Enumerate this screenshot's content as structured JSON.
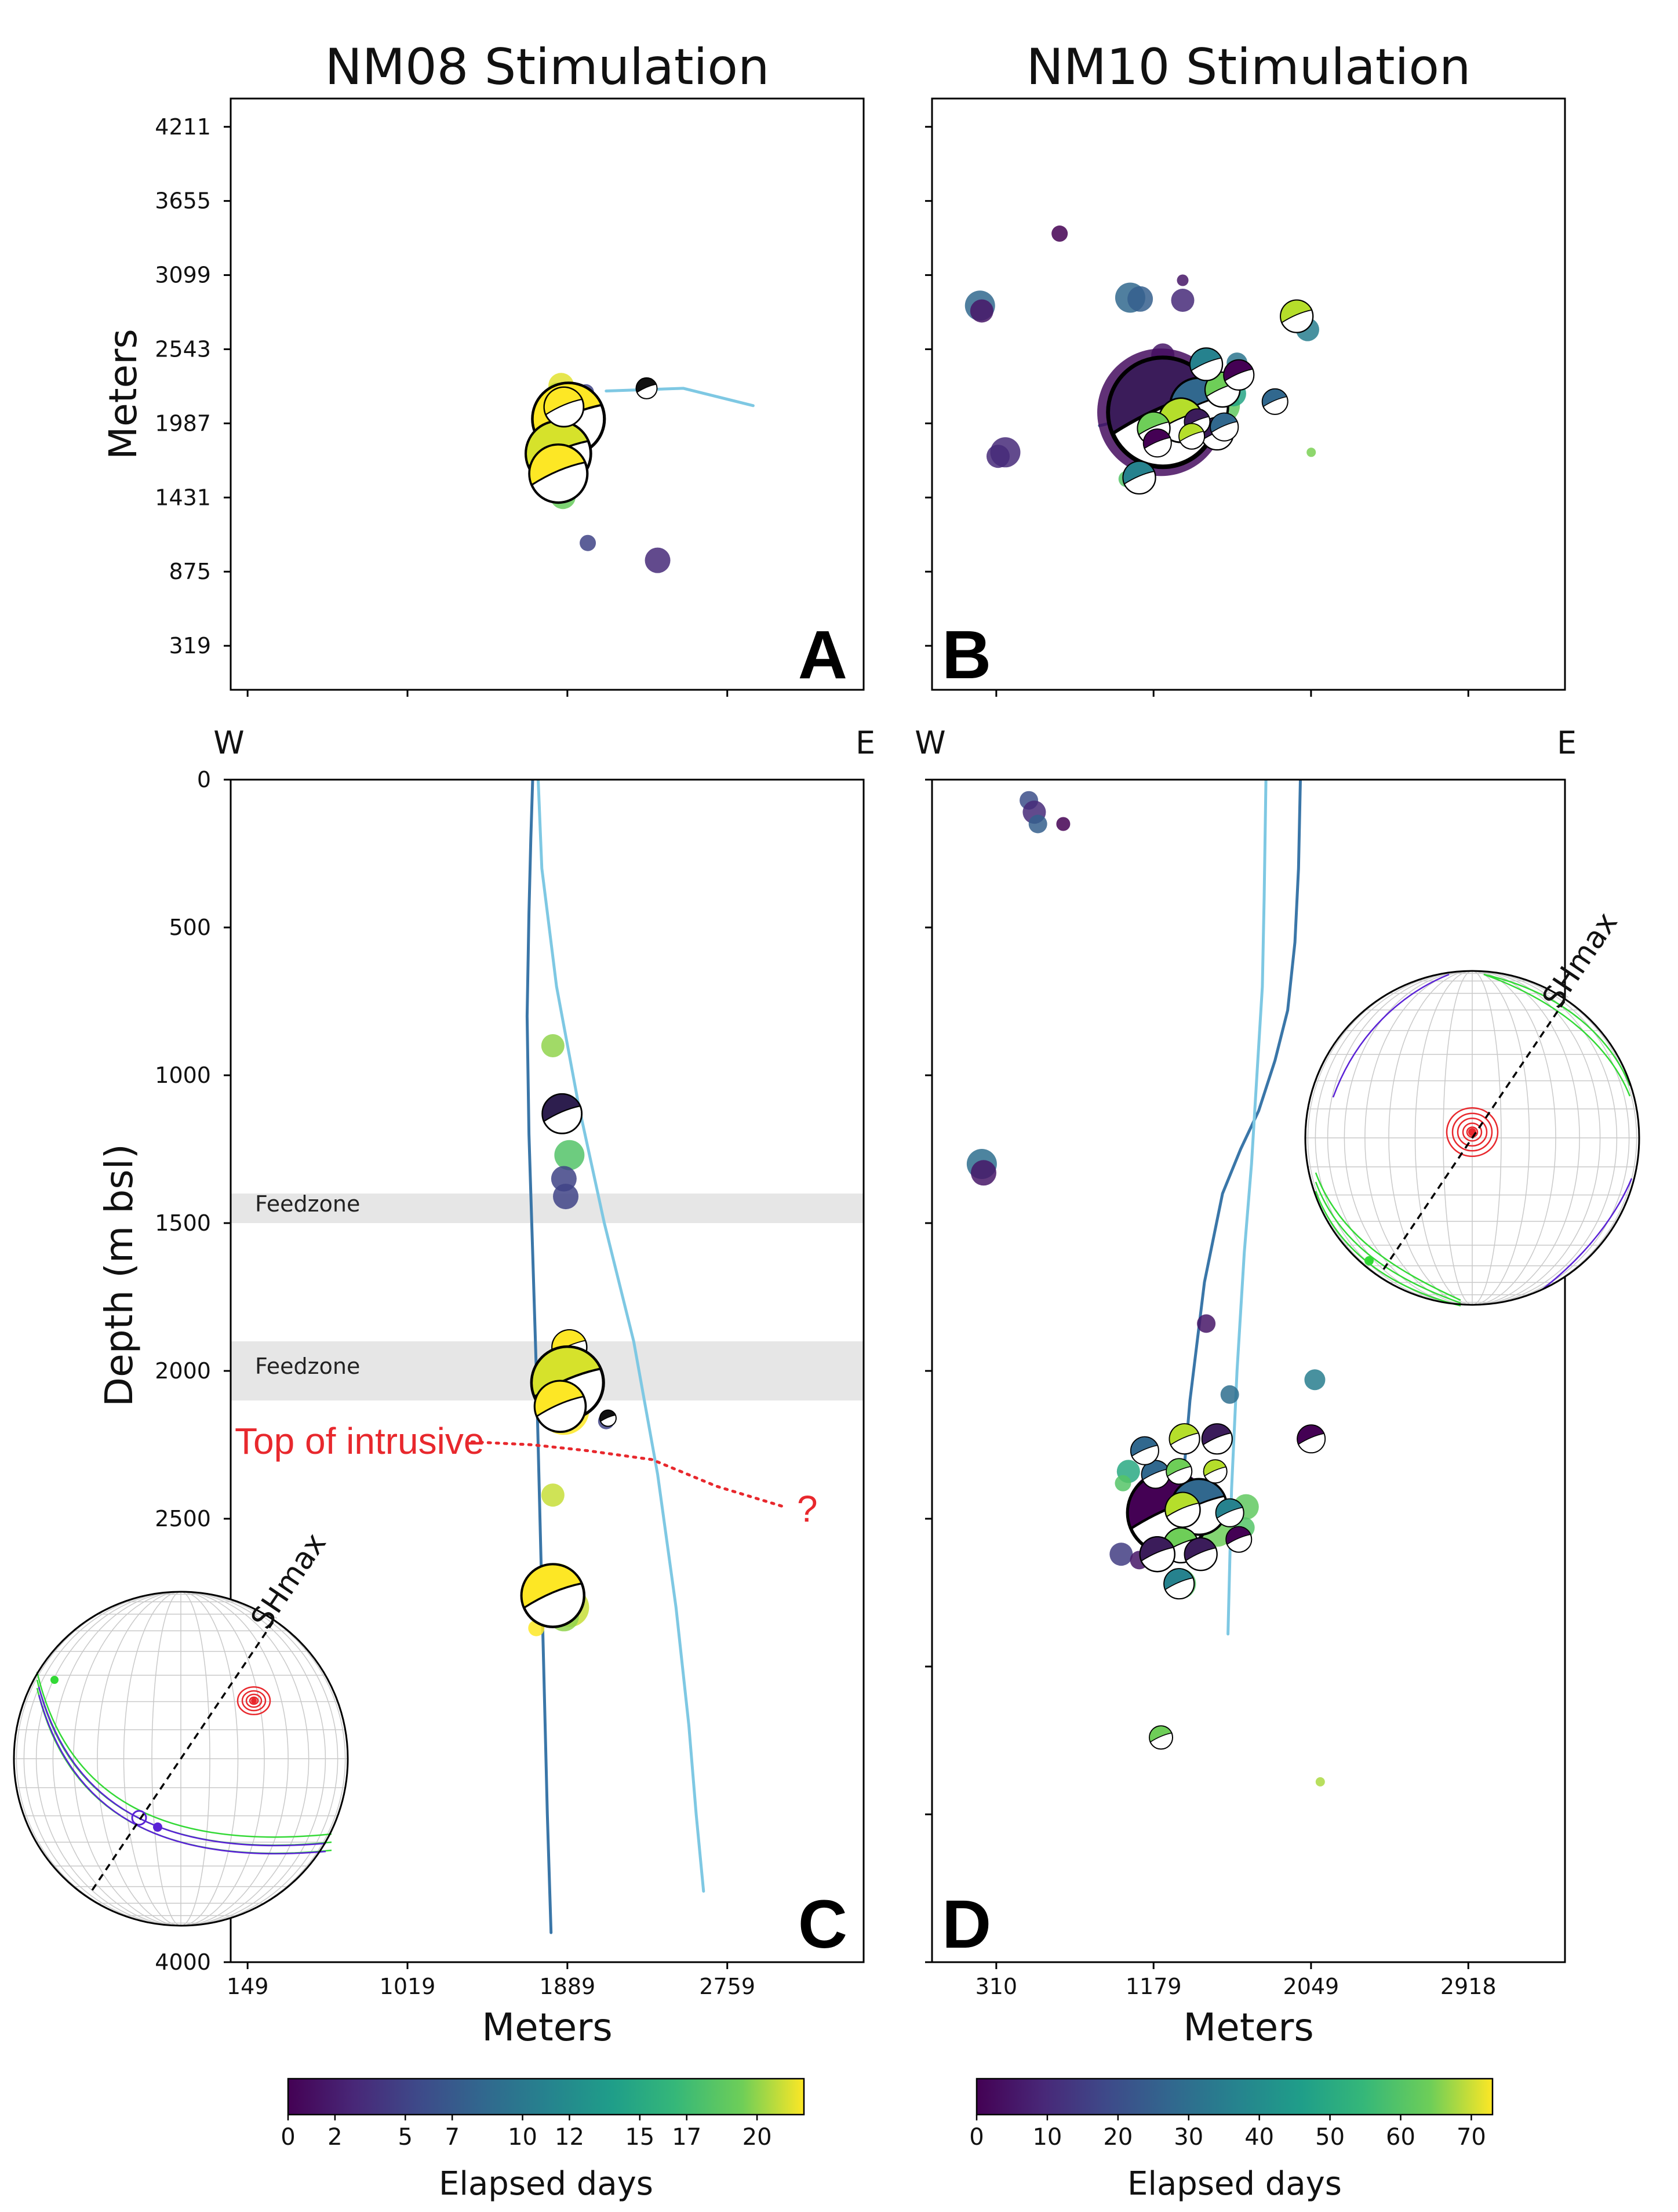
{
  "figure": {
    "titles": [
      "NM08 Stimulation",
      "NM10 Stimulation"
    ],
    "panel_letters": [
      "A",
      "B",
      "C",
      "D"
    ],
    "direction_labels": {
      "west": "W",
      "east": "E"
    },
    "annotations": {
      "feedzone_label": "Feedzone",
      "intrusive_label": "Top of intrusive",
      "question_mark": "?",
      "shmax_label": "SHmax"
    },
    "colors": {
      "well_dark": "#3a76a8",
      "well_light": "#7ec8e3",
      "feedzone_band": "#e6e6e6",
      "annotation_red": "#e8282d",
      "stereonet_red": "#e8282d",
      "stereonet_green": "#33d936",
      "stereonet_purple": "#5a22d6"
    }
  },
  "chart_data": [
    {
      "panel": "A",
      "type": "scatter",
      "title": "NM08 Stimulation",
      "ylabel": "Meters",
      "yticks": [
        "319",
        "875",
        "1431",
        "1987",
        "2543",
        "3099",
        "3655",
        "4211"
      ],
      "ylim": [
        -11,
        4423
      ],
      "colorbar": {
        "label": "Elapsed days",
        "ticks": [
          "0",
          "2",
          "5",
          "7",
          "10",
          "12",
          "15",
          "17",
          "20"
        ],
        "range": [
          0,
          22
        ]
      },
      "well_track_map": [
        [
          2100,
          2230
        ],
        [
          2520,
          2250
        ],
        [
          2900,
          2120
        ]
      ],
      "points": [
        {
          "x": 1855,
          "y": 2270,
          "r": 22,
          "day": 21.5
        },
        {
          "x": 1835,
          "y": 2220,
          "r": 14,
          "day": 0
        },
        {
          "x": 1880,
          "y": 2050,
          "r": 48,
          "day": 17.5
        },
        {
          "x": 1850,
          "y": 1990,
          "r": 40,
          "day": 21
        },
        {
          "x": 1870,
          "y": 1960,
          "r": 46,
          "day": 8
        },
        {
          "x": 1840,
          "y": 1760,
          "r": 40,
          "day": 22
        },
        {
          "x": 1840,
          "y": 1610,
          "r": 36,
          "day": 21
        },
        {
          "x": 1865,
          "y": 1440,
          "r": 22,
          "day": 19
        },
        {
          "x": 2320,
          "y": 2250,
          "r": 12,
          "day": 0
        },
        {
          "x": 1990,
          "y": 2220,
          "r": 14,
          "day": 5
        },
        {
          "x": 1830,
          "y": 2225,
          "r": 16,
          "day": 21
        },
        {
          "x": 2000,
          "y": 1090,
          "r": 14,
          "day": 5
        },
        {
          "x": 2380,
          "y": 960,
          "r": 22,
          "day": 3
        }
      ],
      "mechanisms": [
        {
          "x": 1895,
          "y": 2020,
          "r": 62
        },
        {
          "x": 1840,
          "y": 1760,
          "r": 56
        },
        {
          "x": 1840,
          "y": 1610,
          "r": 50
        },
        {
          "x": 1870,
          "y": 2110,
          "r": 34
        },
        {
          "x": 2320,
          "y": 2250,
          "r": 18
        }
      ]
    },
    {
      "panel": "B",
      "type": "scatter",
      "title": "NM10 Stimulation",
      "colorbar": {
        "label": "Elapsed days",
        "ticks": [
          "0",
          "10",
          "20",
          "30",
          "40",
          "50",
          "60",
          "70"
        ],
        "range": [
          0,
          73
        ]
      },
      "well_track_map": [
        [
          880,
          1970
        ],
        [
          1180,
          2060
        ],
        [
          1500,
          2150
        ]
      ],
      "points": [
        {
          "x": 220,
          "y": 2870,
          "r": 26,
          "day": 28
        },
        {
          "x": 230,
          "y": 2830,
          "r": 20,
          "day": 5
        },
        {
          "x": 660,
          "y": 3410,
          "r": 14,
          "day": 0
        },
        {
          "x": 1050,
          "y": 2930,
          "r": 26,
          "day": 28
        },
        {
          "x": 1105,
          "y": 2920,
          "r": 22,
          "day": 25
        },
        {
          "x": 1340,
          "y": 3060,
          "r": 10,
          "day": 5
        },
        {
          "x": 1340,
          "y": 2910,
          "r": 20,
          "day": 10
        },
        {
          "x": 360,
          "y": 1770,
          "r": 26,
          "day": 10
        },
        {
          "x": 320,
          "y": 1740,
          "r": 20,
          "day": 10
        },
        {
          "x": 1230,
          "y": 2500,
          "r": 20,
          "day": 5
        },
        {
          "x": 1640,
          "y": 2440,
          "r": 18,
          "day": 32
        },
        {
          "x": 2030,
          "y": 2690,
          "r": 20,
          "day": 35
        },
        {
          "x": 2050,
          "y": 1770,
          "r": 8,
          "day": 65
        },
        {
          "x": 1030,
          "y": 1570,
          "r": 14,
          "day": 60
        },
        {
          "x": 1100,
          "y": 1570,
          "r": 14,
          "day": 55
        },
        {
          "x": 1430,
          "y": 2110,
          "r": 40,
          "day": 28
        },
        {
          "x": 1560,
          "y": 2120,
          "r": 30,
          "day": 62
        },
        {
          "x": 1620,
          "y": 2210,
          "r": 22,
          "day": 48
        },
        {
          "x": 1220,
          "y": 2070,
          "r": 110,
          "day": 3
        },
        {
          "x": 1460,
          "y": 2010,
          "r": 38,
          "day": 68
        },
        {
          "x": 1520,
          "y": 1970,
          "r": 22,
          "day": 45
        }
      ],
      "mechanisms": [
        {
          "x": 1230,
          "y": 2070,
          "r": 94
        },
        {
          "x": 1430,
          "y": 2110,
          "r": 50
        },
        {
          "x": 1330,
          "y": 2010,
          "r": 38
        },
        {
          "x": 1560,
          "y": 2240,
          "r": 30
        },
        {
          "x": 1650,
          "y": 2350,
          "r": 26
        },
        {
          "x": 1470,
          "y": 2430,
          "r": 28
        },
        {
          "x": 1530,
          "y": 1910,
          "r": 28
        },
        {
          "x": 1850,
          "y": 2150,
          "r": 22
        },
        {
          "x": 1970,
          "y": 2790,
          "r": 28
        },
        {
          "x": 1180,
          "y": 1950,
          "r": 28
        },
        {
          "x": 1200,
          "y": 1840,
          "r": 24
        },
        {
          "x": 1100,
          "y": 1580,
          "r": 28
        },
        {
          "x": 1420,
          "y": 2000,
          "r": 22
        },
        {
          "x": 1570,
          "y": 1960,
          "r": 24
        },
        {
          "x": 1390,
          "y": 1890,
          "r": 22
        }
      ]
    },
    {
      "panel": "C",
      "type": "scatter",
      "xlabel": "Meters",
      "ylabel": "Depth (m bsl)",
      "xticks": [
        "149",
        "1019",
        "1889",
        "2759"
      ],
      "xlim": [
        57,
        3501
      ],
      "yticks": [
        "0",
        "500",
        "1000",
        "1500",
        "2000",
        "2500",
        "4000"
      ],
      "ylim": [
        4000,
        0
      ],
      "feedzones": [
        [
          1400,
          1500
        ],
        [
          1900,
          2100
        ]
      ],
      "well_dark": [
        [
          1700,
          0
        ],
        [
          1690,
          200
        ],
        [
          1680,
          450
        ],
        [
          1670,
          800
        ],
        [
          1680,
          1200
        ],
        [
          1700,
          1600
        ],
        [
          1720,
          2000
        ],
        [
          1740,
          2500
        ],
        [
          1760,
          3000
        ],
        [
          1780,
          3500
        ],
        [
          1800,
          3900
        ]
      ],
      "well_light": [
        [
          1730,
          0
        ],
        [
          1750,
          300
        ],
        [
          1830,
          700
        ],
        [
          1950,
          1100
        ],
        [
          2090,
          1500
        ],
        [
          2250,
          1900
        ],
        [
          2380,
          2350
        ],
        [
          2480,
          2800
        ],
        [
          2550,
          3200
        ],
        [
          2590,
          3500
        ],
        [
          2630,
          3760
        ]
      ],
      "intrusive_top": [
        [
          1370,
          2240
        ],
        [
          1700,
          2250
        ],
        [
          2000,
          2270
        ],
        [
          2350,
          2300
        ],
        [
          2700,
          2390
        ],
        [
          3070,
          2460
        ]
      ],
      "points": [
        {
          "x": 1810,
          "y": 900,
          "r": 20,
          "day": 20
        },
        {
          "x": 1900,
          "y": 1270,
          "r": 26,
          "day": 18
        },
        {
          "x": 1870,
          "y": 1350,
          "r": 22,
          "day": 5
        },
        {
          "x": 1880,
          "y": 1410,
          "r": 22,
          "day": 5
        },
        {
          "x": 1880,
          "y": 2010,
          "r": 50,
          "day": 21
        },
        {
          "x": 1850,
          "y": 2080,
          "r": 42,
          "day": 20
        },
        {
          "x": 1910,
          "y": 2060,
          "r": 46,
          "day": 20
        },
        {
          "x": 1870,
          "y": 2130,
          "r": 44,
          "day": 22
        },
        {
          "x": 1810,
          "y": 2420,
          "r": 20,
          "day": 21
        },
        {
          "x": 2100,
          "y": 2170,
          "r": 14,
          "day": 5
        },
        {
          "x": 1820,
          "y": 2740,
          "r": 46,
          "day": 21
        },
        {
          "x": 1900,
          "y": 2800,
          "r": 34,
          "day": 21
        },
        {
          "x": 1870,
          "y": 2830,
          "r": 26,
          "day": 20
        },
        {
          "x": 1720,
          "y": 2870,
          "r": 14,
          "day": 22
        }
      ],
      "mechanisms": [
        {
          "x": 1860,
          "y": 1130,
          "r": 34
        },
        {
          "x": 1900,
          "y": 1920,
          "r": 30
        },
        {
          "x": 1890,
          "y": 2040,
          "r": 62
        },
        {
          "x": 1850,
          "y": 2120,
          "r": 44
        },
        {
          "x": 1810,
          "y": 2760,
          "r": 54
        },
        {
          "x": 2110,
          "y": 2160,
          "r": 14
        }
      ]
    },
    {
      "panel": "D",
      "type": "scatter",
      "xlabel": "Meters",
      "xticks": [
        "310",
        "1179",
        "2049",
        "2918"
      ],
      "xlim": [
        -45,
        3452
      ],
      "ylim": [
        4000,
        0
      ],
      "well_dark": [
        [
          1330,
          2460
        ],
        [
          1380,
          2100
        ],
        [
          1460,
          1700
        ],
        [
          1560,
          1400
        ],
        [
          1660,
          1250
        ],
        [
          1760,
          1120
        ],
        [
          1850,
          950
        ],
        [
          1920,
          780
        ],
        [
          1960,
          550
        ],
        [
          1980,
          300
        ],
        [
          1990,
          0
        ]
      ],
      "well_light": [
        [
          1590,
          2890
        ],
        [
          1610,
          2400
        ],
        [
          1640,
          2000
        ],
        [
          1680,
          1600
        ],
        [
          1720,
          1300
        ],
        [
          1750,
          1000
        ],
        [
          1780,
          700
        ],
        [
          1790,
          400
        ],
        [
          1800,
          0
        ]
      ],
      "points": [
        {
          "x": 230,
          "y": 1300,
          "r": 26,
          "day": 30
        },
        {
          "x": 240,
          "y": 1330,
          "r": 22,
          "day": 5
        },
        {
          "x": 490,
          "y": 70,
          "r": 16,
          "day": 20
        },
        {
          "x": 520,
          "y": 110,
          "r": 20,
          "day": 10
        },
        {
          "x": 540,
          "y": 150,
          "r": 16,
          "day": 25
        },
        {
          "x": 680,
          "y": 150,
          "r": 12,
          "day": 0
        },
        {
          "x": 1470,
          "y": 1840,
          "r": 16,
          "day": 5
        },
        {
          "x": 1600,
          "y": 2080,
          "r": 16,
          "day": 30
        },
        {
          "x": 2070,
          "y": 2030,
          "r": 18,
          "day": 35
        },
        {
          "x": 1000,
          "y": 2620,
          "r": 20,
          "day": 15
        },
        {
          "x": 1100,
          "y": 2640,
          "r": 16,
          "day": 5
        },
        {
          "x": 2100,
          "y": 3390,
          "r": 8,
          "day": 68
        },
        {
          "x": 1040,
          "y": 2340,
          "r": 20,
          "day": 50
        },
        {
          "x": 1010,
          "y": 2380,
          "r": 14,
          "day": 60
        },
        {
          "x": 1690,
          "y": 2460,
          "r": 22,
          "day": 62
        },
        {
          "x": 1680,
          "y": 2530,
          "r": 18,
          "day": 60
        },
        {
          "x": 1260,
          "y": 2470,
          "r": 70,
          "day": 3
        },
        {
          "x": 1430,
          "y": 2460,
          "r": 50,
          "day": 25
        },
        {
          "x": 1530,
          "y": 2540,
          "r": 28,
          "day": 64
        },
        {
          "x": 1330,
          "y": 2720,
          "r": 26,
          "day": 60
        }
      ],
      "mechanisms": [
        {
          "x": 1260,
          "y": 2480,
          "r": 70
        },
        {
          "x": 1430,
          "y": 2460,
          "r": 48
        },
        {
          "x": 1330,
          "y": 2590,
          "r": 30
        },
        {
          "x": 1350,
          "y": 2230,
          "r": 26
        },
        {
          "x": 1530,
          "y": 2230,
          "r": 26
        },
        {
          "x": 1600,
          "y": 2480,
          "r": 24
        },
        {
          "x": 1650,
          "y": 2570,
          "r": 22
        },
        {
          "x": 1190,
          "y": 2350,
          "r": 24
        },
        {
          "x": 1320,
          "y": 2340,
          "r": 22
        },
        {
          "x": 1520,
          "y": 2340,
          "r": 20
        },
        {
          "x": 1200,
          "y": 2620,
          "r": 30
        },
        {
          "x": 1320,
          "y": 2720,
          "r": 26
        },
        {
          "x": 2050,
          "y": 2230,
          "r": 24
        },
        {
          "x": 1130,
          "y": 2270,
          "r": 24
        },
        {
          "x": 1220,
          "y": 3240,
          "r": 20
        },
        {
          "x": 1340,
          "y": 2470,
          "r": 30
        },
        {
          "x": 1440,
          "y": 2620,
          "r": 28
        }
      ]
    }
  ]
}
